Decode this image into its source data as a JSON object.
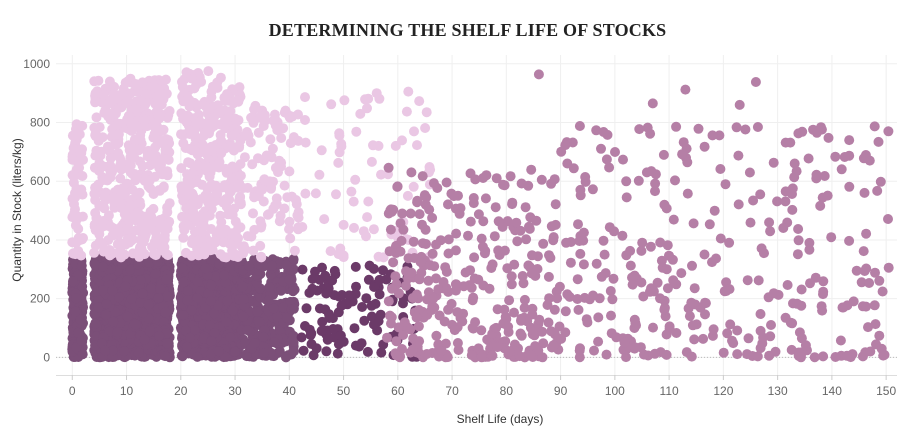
{
  "chart_data": {
    "type": "scatter",
    "title": "DETERMINING THE SHELF LIFE OF STOCKS",
    "xlabel": "Shelf Life (days)",
    "ylabel": "Quantity in Stock (liters/kg)",
    "xlim": [
      -3,
      152
    ],
    "ylim": [
      -60,
      1030
    ],
    "xticks": [
      0,
      10,
      20,
      30,
      40,
      50,
      60,
      70,
      80,
      90,
      100,
      110,
      120,
      130,
      140,
      150
    ],
    "yticks": [
      0,
      200,
      400,
      600,
      800,
      1000
    ],
    "grid": true,
    "legend": "none",
    "colors": {
      "dense_short_shelf_high_qty": "#eac7e4",
      "dense_short_shelf_low_qty": "#7b4f78",
      "mid_shelf_low_qty": "#6b3a68",
      "long_shelf": "#b57fa6"
    },
    "series": [
      {
        "color_key": "dense_short_shelf_low_qty",
        "regions": [
          {
            "x": [
              0,
              2
            ],
            "y": [
              0,
              340
            ],
            "n": 220
          },
          {
            "x": [
              4,
              18
            ],
            "y": [
              0,
              340
            ],
            "n": 1100
          },
          {
            "x": [
              20,
              31
            ],
            "y": [
              0,
              340
            ],
            "n": 900
          },
          {
            "x": [
              31,
              41
            ],
            "y": [
              0,
              335
            ],
            "n": 260
          }
        ]
      },
      {
        "color_key": "dense_short_shelf_high_qty",
        "regions": [
          {
            "x": [
              0,
              2
            ],
            "y": [
              340,
              800
            ],
            "n": 60
          },
          {
            "x": [
              4,
              18
            ],
            "y": [
              340,
              950
            ],
            "n": 420
          },
          {
            "x": [
              20,
              31
            ],
            "y": [
              340,
              980
            ],
            "n": 340
          },
          {
            "x": [
              31,
              42
            ],
            "y": [
              340,
              860
            ],
            "n": 110
          },
          {
            "x": [
              42,
              66
            ],
            "y": [
              340,
              910
            ],
            "n": 70
          }
        ]
      },
      {
        "color_key": "mid_shelf_low_qty",
        "regions": [
          {
            "x": [
              42,
              64
            ],
            "y": [
              0,
              320
            ],
            "n": 110
          }
        ]
      },
      {
        "color_key": "long_shelf",
        "regions": [
          {
            "x": [
              58,
              90
            ],
            "y": [
              0,
              650
            ],
            "n": 330
          },
          {
            "x": [
              90,
              151
            ],
            "y": [
              0,
              790
            ],
            "n": 330
          }
        ],
        "points": [
          [
            86,
            964
          ],
          [
            113,
            912
          ],
          [
            107,
            865
          ],
          [
            123,
            860
          ],
          [
            126,
            938
          ],
          [
            138,
            784
          ],
          [
            118,
            756
          ]
        ]
      }
    ]
  }
}
